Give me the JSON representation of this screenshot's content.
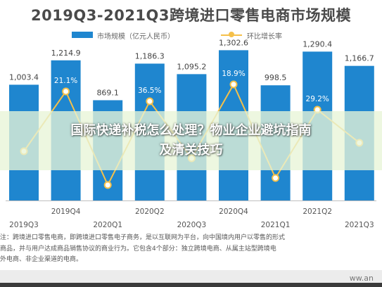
{
  "title": "2019Q3-2021Q3跨境进口零售电商市场规模",
  "legend": {
    "bar_label": "市场规模（亿元人民币）",
    "line_label": "环比增长率"
  },
  "banner": {
    "line1": "国际快递补税怎么处理？物业企业避坑指南",
    "line2": "及清关技巧"
  },
  "note": {
    "line1": "注：跨境进口零售电商，即跨境进口零售电子商务，是以互联网为平台，向中国境内用户以零售的形式",
    "line2": "商品，并与用户达成商品销售协议的商业行为。它包含4个部分：独立跨境电商、从属主站型跨境电",
    "line3": "外电商、非企业渠道的电商。"
  },
  "footer": {
    "source": "ww.an"
  },
  "colors": {
    "bar": "#1f86cf",
    "line": "#f5c04a",
    "title": "#4a4a4a"
  },
  "chart_data": {
    "type": "bar",
    "title": "2019Q3-2021Q3跨境进口零售电商市场规模",
    "categories": [
      "2019Q3",
      "2019Q4",
      "2020Q1",
      "2020Q2",
      "2020Q3",
      "2020Q4",
      "2021Q1",
      "2021Q2",
      "2021Q3"
    ],
    "series": [
      {
        "name": "市场规模（亿元人民币）",
        "type": "bar",
        "values": [
          1003.4,
          1214.9,
          869.1,
          1186.3,
          1095.2,
          1302.6,
          998.5,
          1290.4,
          1166.7
        ]
      },
      {
        "name": "环比增长率",
        "type": "line",
        "values": [
          null,
          21.1,
          null,
          36.5,
          null,
          18.9,
          null,
          29.2,
          null
        ]
      }
    ],
    "ylim": [
      0,
      1350
    ],
    "legend_position": "top"
  }
}
